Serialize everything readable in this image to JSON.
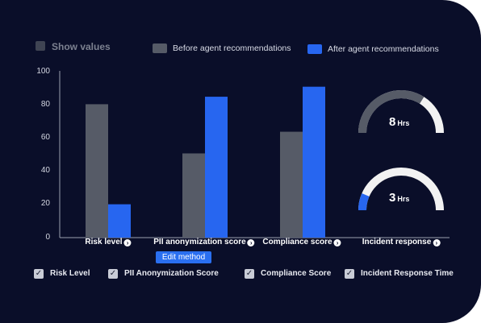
{
  "controls": {
    "show_values_label": "Show values",
    "edit_method_label": "Edit method"
  },
  "legend": [
    {
      "label": "Before agent recommendations",
      "color": "#565b67"
    },
    {
      "label": "After agent recommendations",
      "color": "#2766f0"
    }
  ],
  "chart_data": {
    "type": "bar",
    "categories": [
      "Risk level",
      "PII anonymization score",
      "Compliance score",
      "Incident response"
    ],
    "series": [
      {
        "name": "Before agent recommendations",
        "color": "#565b67",
        "values": [
          80,
          50.5,
          63.5,
          null
        ]
      },
      {
        "name": "After agent recommendations",
        "color": "#2766f0",
        "values": [
          20,
          84.5,
          90.5,
          null
        ]
      }
    ],
    "ylim": [
      0,
      100
    ],
    "yticks": [
      "0",
      "20",
      "40",
      "60",
      "80",
      "100"
    ],
    "grid": false
  },
  "gauges": [
    {
      "value": "8",
      "unit": "Hrs",
      "fraction": 0.68,
      "fill_color": "#565b67",
      "track_color": "#f2f2f2"
    },
    {
      "value": "3",
      "unit": "Hrs",
      "fraction": 0.13,
      "fill_color": "#2766f0",
      "track_color": "#f2f2f2"
    }
  ],
  "filters": [
    {
      "label": "Risk Level",
      "checked": true
    },
    {
      "label": "PII Anonymization Score",
      "checked": true
    },
    {
      "label": "Compliance Score",
      "checked": true
    },
    {
      "label": "Incident Response Time",
      "checked": true
    }
  ],
  "icons": {
    "category_arrow": "arrow-circle-right-icon",
    "checkbox": "check-icon"
  }
}
